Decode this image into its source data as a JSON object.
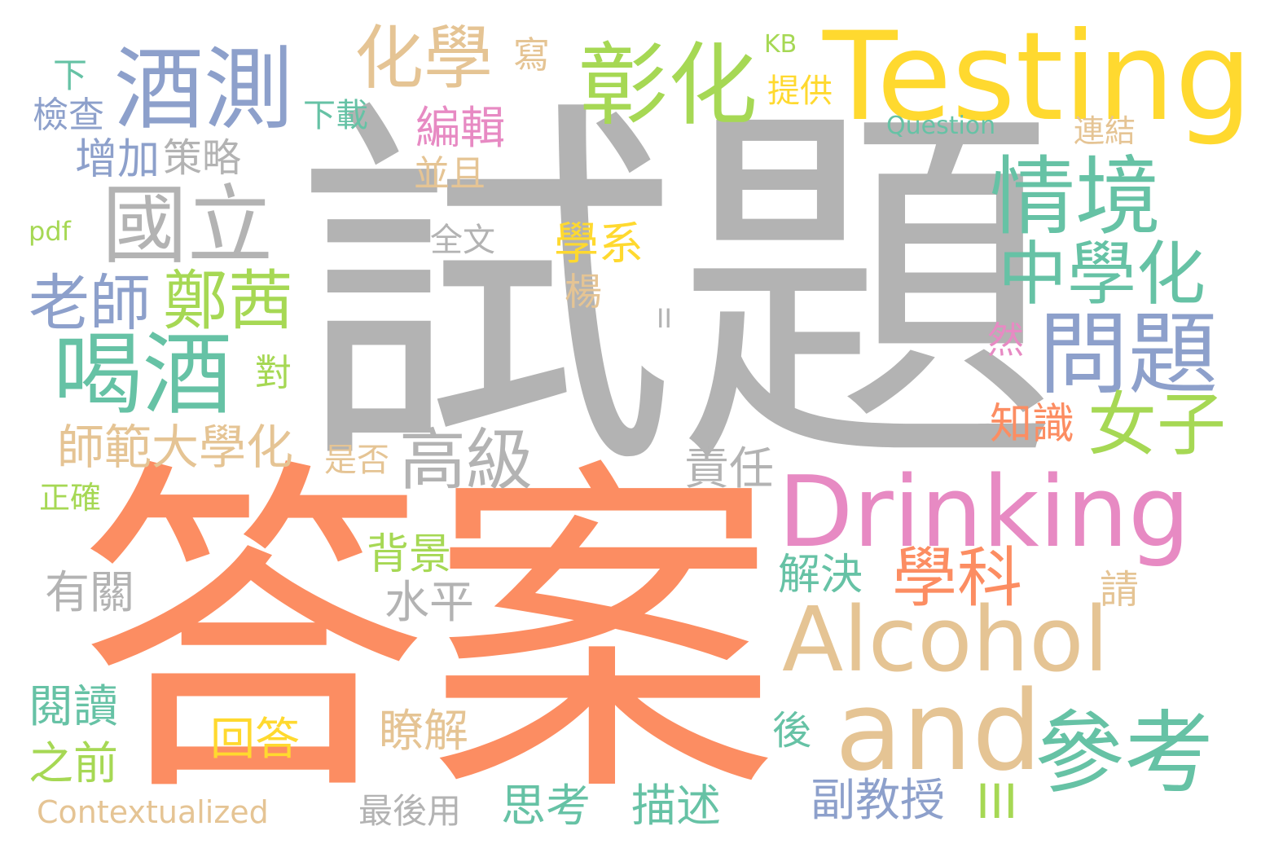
{
  "colors": {
    "gray": "#b3b3b3",
    "orange": "#fc8d62",
    "blue": "#8da0cb",
    "pink": "#e78ac3",
    "green": "#a6d854",
    "yellow": "#ffd92f",
    "tan": "#e5c494",
    "teal": "#66c2a5"
  },
  "words": [
    {
      "text": "試題",
      "color": "gray",
      "weight": 1.0
    },
    {
      "text": "答案",
      "color": "orange",
      "weight": 0.95
    },
    {
      "text": "Testing",
      "color": "yellow",
      "weight": 0.5
    },
    {
      "text": "Drinking",
      "color": "pink",
      "weight": 0.45
    },
    {
      "text": "Alcohol",
      "color": "tan",
      "weight": 0.45
    },
    {
      "text": "and",
      "color": "tan",
      "weight": 0.45
    },
    {
      "text": "酒測",
      "color": "blue",
      "weight": 0.4
    },
    {
      "text": "彰化",
      "color": "green",
      "weight": 0.35
    },
    {
      "text": "國立",
      "color": "gray",
      "weight": 0.35
    },
    {
      "text": "情境",
      "color": "teal",
      "weight": 0.3
    },
    {
      "text": "喝酒",
      "color": "teal",
      "weight": 0.3
    },
    {
      "text": "問題",
      "color": "blue",
      "weight": 0.3
    },
    {
      "text": "參考",
      "color": "teal",
      "weight": 0.3
    },
    {
      "text": "化學",
      "color": "tan",
      "weight": 0.25
    },
    {
      "text": "中學化",
      "color": "teal",
      "weight": 0.25
    },
    {
      "text": "女子",
      "color": "green",
      "weight": 0.25
    },
    {
      "text": "高級",
      "color": "gray",
      "weight": 0.25
    },
    {
      "text": "鄭茜",
      "color": "green",
      "weight": 0.25
    },
    {
      "text": "老師",
      "color": "blue",
      "weight": 0.2
    },
    {
      "text": "學科",
      "color": "orange",
      "weight": 0.2
    },
    {
      "text": "師範大學化",
      "color": "tan",
      "weight": 0.15
    },
    {
      "text": "增加",
      "color": "blue",
      "weight": 0.12
    },
    {
      "text": "策略",
      "color": "gray",
      "weight": 0.12
    },
    {
      "text": "編輯",
      "color": "pink",
      "weight": 0.12
    },
    {
      "text": "學系",
      "color": "yellow",
      "weight": 0.12
    },
    {
      "text": "知識",
      "color": "orange",
      "weight": 0.12
    },
    {
      "text": "責任",
      "color": "gray",
      "weight": 0.12
    },
    {
      "text": "水平",
      "color": "gray",
      "weight": 0.12
    },
    {
      "text": "解決",
      "color": "teal",
      "weight": 0.12
    },
    {
      "text": "有關",
      "color": "gray",
      "weight": 0.12
    },
    {
      "text": "背景",
      "color": "green",
      "weight": 0.12
    },
    {
      "text": "閱讀",
      "color": "teal",
      "weight": 0.12
    },
    {
      "text": "之前",
      "color": "green",
      "weight": 0.12
    },
    {
      "text": "回答",
      "color": "yellow",
      "weight": 0.12
    },
    {
      "text": "瞭解",
      "color": "tan",
      "weight": 0.12
    },
    {
      "text": "思考",
      "color": "teal",
      "weight": 0.12
    },
    {
      "text": "描述",
      "color": "teal",
      "weight": 0.12
    },
    {
      "text": "副教授",
      "color": "blue",
      "weight": 0.12
    },
    {
      "text": "檢查",
      "color": "blue",
      "weight": 0.1
    },
    {
      "text": "下載",
      "color": "teal",
      "weight": 0.1
    },
    {
      "text": "提供",
      "color": "yellow",
      "weight": 0.1
    },
    {
      "text": "連結",
      "color": "tan",
      "weight": 0.1
    },
    {
      "text": "並且",
      "color": "tan",
      "weight": 0.1
    },
    {
      "text": "全文",
      "color": "gray",
      "weight": 0.1
    },
    {
      "text": "是否",
      "color": "tan",
      "weight": 0.1
    },
    {
      "text": "正確",
      "color": "green",
      "weight": 0.1
    },
    {
      "text": "最後用",
      "color": "gray",
      "weight": 0.1
    },
    {
      "text": "Question",
      "color": "teal",
      "weight": 0.08
    },
    {
      "text": "Contextualized",
      "color": "tan",
      "weight": 0.08
    },
    {
      "text": "KB",
      "color": "green",
      "weight": 0.06
    },
    {
      "text": "pdf",
      "color": "green",
      "weight": 0.06
    },
    {
      "text": "下",
      "color": "teal",
      "weight": 0.1
    },
    {
      "text": "寫",
      "color": "tan",
      "weight": 0.1
    },
    {
      "text": "楊",
      "color": "tan",
      "weight": 0.1
    },
    {
      "text": "對",
      "color": "green",
      "weight": 0.1
    },
    {
      "text": "然",
      "color": "pink",
      "weight": 0.1
    },
    {
      "text": "請",
      "color": "tan",
      "weight": 0.1
    },
    {
      "text": "後",
      "color": "teal",
      "weight": 0.1
    },
    {
      "text": "II",
      "color": "gray",
      "weight": 0.06
    },
    {
      "text": "III",
      "color": "green",
      "weight": 0.1
    }
  ]
}
